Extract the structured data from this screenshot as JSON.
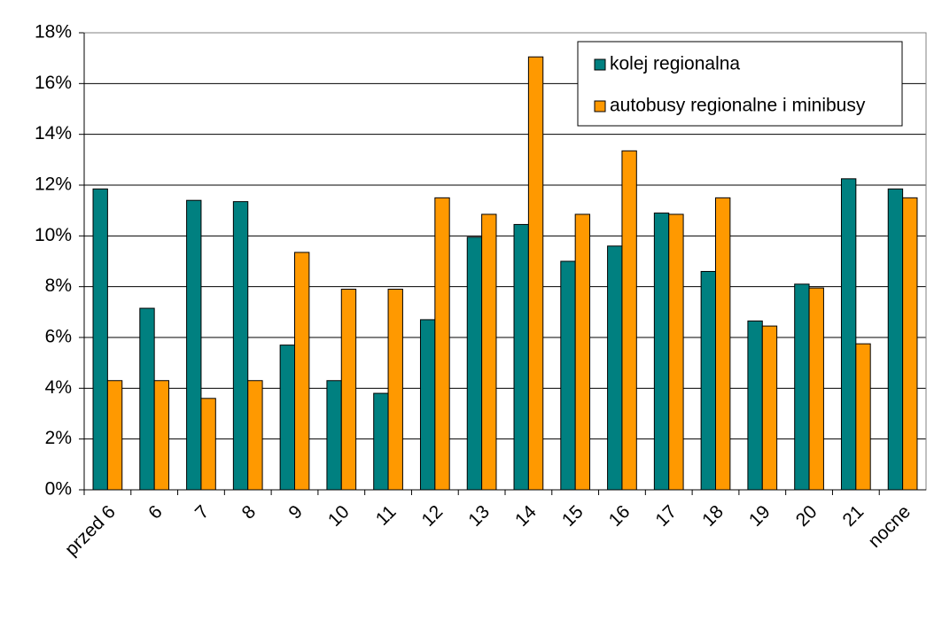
{
  "chart_data": {
    "type": "bar",
    "categories": [
      "przed 6",
      "6",
      "7",
      "8",
      "9",
      "10",
      "11",
      "12",
      "13",
      "14",
      "15",
      "16",
      "17",
      "18",
      "19",
      "20",
      "21",
      "nocne"
    ],
    "series": [
      {
        "name": "kolej regionalna",
        "color": "#008080",
        "values": [
          11.85,
          7.15,
          11.4,
          11.35,
          5.7,
          4.3,
          3.8,
          6.7,
          9.95,
          10.45,
          9.0,
          9.6,
          10.9,
          8.6,
          6.65,
          8.1,
          12.25,
          11.85
        ]
      },
      {
        "name": "autobusy regionalne i minibusy",
        "color": "#ff9900",
        "values": [
          4.3,
          4.3,
          3.6,
          4.3,
          9.35,
          7.9,
          7.9,
          11.5,
          10.85,
          17.05,
          10.85,
          13.35,
          10.85,
          11.5,
          6.45,
          7.95,
          5.75,
          11.5
        ]
      }
    ],
    "ylim": [
      0,
      18
    ],
    "yticks": [
      {
        "value": 0,
        "label": "0%"
      },
      {
        "value": 2,
        "label": "2%"
      },
      {
        "value": 4,
        "label": "4%"
      },
      {
        "value": 6,
        "label": "6%"
      },
      {
        "value": 8,
        "label": "8%"
      },
      {
        "value": 10,
        "label": "10%"
      },
      {
        "value": 12,
        "label": "12%"
      },
      {
        "value": 14,
        "label": "14%"
      },
      {
        "value": 16,
        "label": "16%"
      },
      {
        "value": 18,
        "label": "18%"
      }
    ],
    "grid": true,
    "legend": "top-right"
  }
}
